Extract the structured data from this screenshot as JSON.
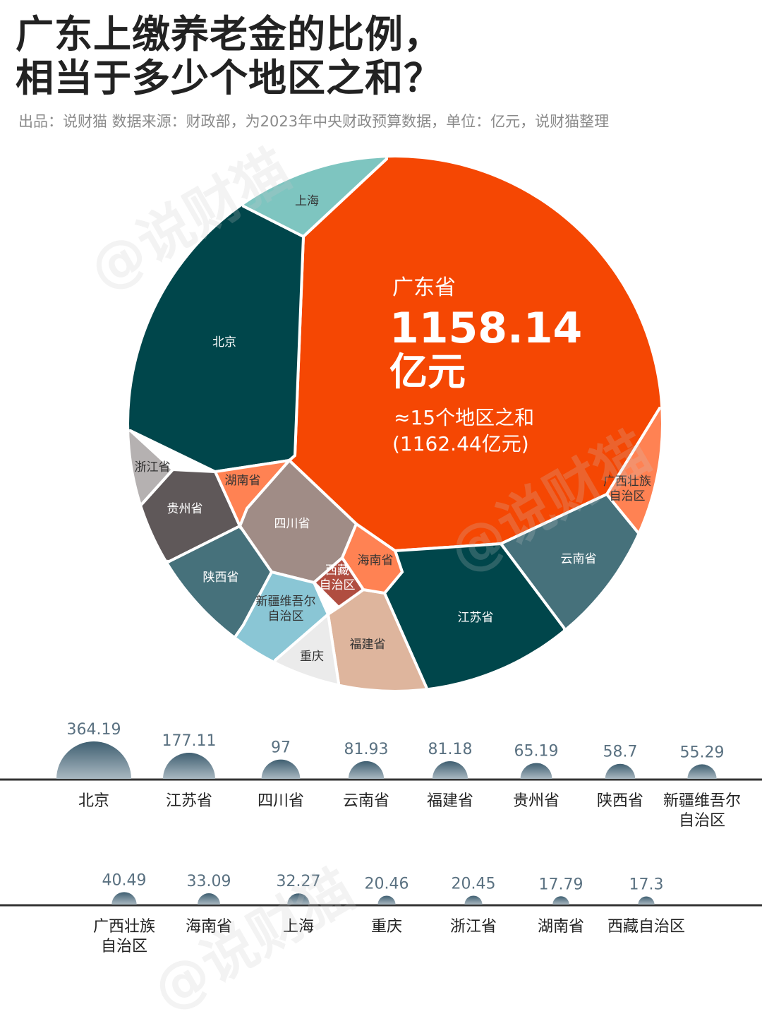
{
  "header": {
    "title_line1": "广东上缴养老金的比例，",
    "title_line2": "相当于多少个地区之和？",
    "subtitle": "出品：说财猫   数据来源：财政部，为2023年中央财政预算数据，单位：亿元，说财猫整理"
  },
  "watermark": "@说财猫",
  "chart_data": [
    {
      "type": "voronoi-treemap",
      "unit": "亿元",
      "highlight": {
        "name": "广东省",
        "value_text": "1158.14",
        "unit_text": "亿元",
        "note": "≈15个地区之和",
        "note_sum": "(1162.44亿元)",
        "value": 1158.14,
        "sum": 1162.44
      },
      "regions": [
        {
          "name": "广东省",
          "value": 1158.14,
          "color": "#f54703"
        },
        {
          "name": "北京",
          "value": 364.19,
          "color": "#00464b"
        },
        {
          "name": "江苏省",
          "value": 177.11,
          "color": "#00464b"
        },
        {
          "name": "四川省",
          "value": 97,
          "color": "#a08c86"
        },
        {
          "name": "云南省",
          "value": 81.93,
          "color": "#46717b"
        },
        {
          "name": "福建省",
          "value": 81.18,
          "color": "#deb59d"
        },
        {
          "name": "贵州省",
          "value": 65.19,
          "color": "#5f5859"
        },
        {
          "name": "陕西省",
          "value": 58.7,
          "color": "#46717b"
        },
        {
          "name": "新疆维吾尔自治区",
          "value": 55.29,
          "color": "#8ac6d5"
        },
        {
          "name": "广西壮族自治区",
          "value": 40.49,
          "color": "#ff8253"
        },
        {
          "name": "海南省",
          "value": 33.09,
          "color": "#ff8253"
        },
        {
          "name": "上海",
          "value": 32.27,
          "color": "#7ec5c0"
        },
        {
          "name": "重庆",
          "value": 20.46,
          "color": "#ebebeb"
        },
        {
          "name": "浙江省",
          "value": 20.45,
          "color": "#b5b1b1"
        },
        {
          "name": "湖南省",
          "value": 17.79,
          "color": "#ff8253"
        },
        {
          "name": "西藏自治区",
          "value": 17.3,
          "color": "#b04d40"
        }
      ],
      "labels": {
        "北京": [
          "北京"
        ],
        "江苏省": [
          "江苏省"
        ],
        "四川省": [
          "四川省"
        ],
        "云南省": [
          "云南省"
        ],
        "福建省": [
          "福建省"
        ],
        "贵州省": [
          "贵州省"
        ],
        "陕西省": [
          "陕西省"
        ],
        "新疆维吾尔自治区": [
          "新疆维吾尔",
          "自治区"
        ],
        "广西壮族自治区": [
          "广西壮族",
          "自治区"
        ],
        "海南省": [
          "海南省"
        ],
        "上海": [
          "上海"
        ],
        "重庆": [
          "重庆"
        ],
        "浙江省": [
          "浙江省"
        ],
        "湖南省": [
          "湖南省"
        ],
        "西藏自治区": [
          "西藏",
          "自治区"
        ]
      }
    },
    {
      "type": "bubble",
      "unit": "亿元",
      "bubble_gradient": [
        "#3f5f71",
        "#a9b8c1"
      ],
      "rows": [
        [
          {
            "label": [
              "北京"
            ],
            "value": 364.19,
            "value_text": "364.19"
          },
          {
            "label": [
              "江苏省"
            ],
            "value": 177.11,
            "value_text": "177.11"
          },
          {
            "label": [
              "四川省"
            ],
            "value": 97,
            "value_text": "97"
          },
          {
            "label": [
              "云南省"
            ],
            "value": 81.93,
            "value_text": "81.93"
          },
          {
            "label": [
              "福建省"
            ],
            "value": 81.18,
            "value_text": "81.18"
          },
          {
            "label": [
              "贵州省"
            ],
            "value": 65.19,
            "value_text": "65.19"
          },
          {
            "label": [
              "陕西省"
            ],
            "value": 58.7,
            "value_text": "58.7"
          },
          {
            "label": [
              "新疆维吾尔",
              "自治区"
            ],
            "value": 55.29,
            "value_text": "55.29"
          }
        ],
        [
          {
            "label": [
              "广西壮族",
              "自治区"
            ],
            "value": 40.49,
            "value_text": "40.49"
          },
          {
            "label": [
              "海南省"
            ],
            "value": 33.09,
            "value_text": "33.09"
          },
          {
            "label": [
              "上海"
            ],
            "value": 32.27,
            "value_text": "32.27"
          },
          {
            "label": [
              "重庆"
            ],
            "value": 20.46,
            "value_text": "20.46"
          },
          {
            "label": [
              "浙江省"
            ],
            "value": 20.45,
            "value_text": "20.45"
          },
          {
            "label": [
              "湖南省"
            ],
            "value": 17.79,
            "value_text": "17.79"
          },
          {
            "label": [
              "西藏自治区"
            ],
            "value": 17.3,
            "value_text": "17.3"
          }
        ]
      ]
    }
  ]
}
